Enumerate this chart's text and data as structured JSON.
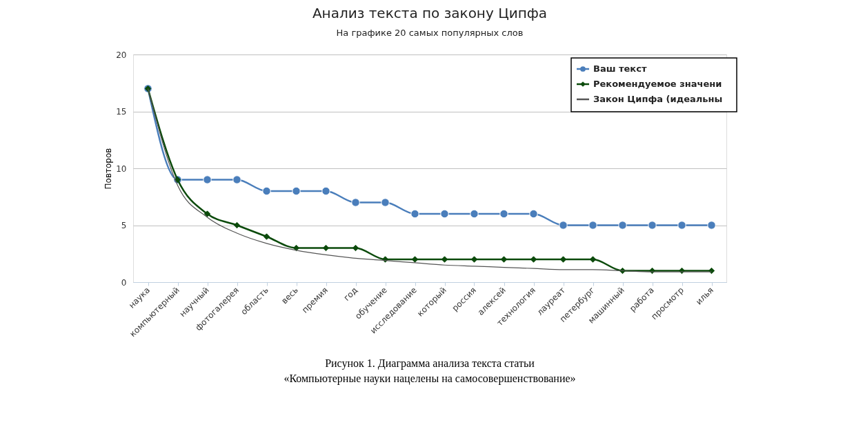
{
  "chart_data": {
    "type": "line",
    "title": "Анализ текста по закону Ципфа",
    "subtitle": "На графике 20 самых популярных слов",
    "ylabel": "Повторов",
    "categories": [
      "наука",
      "компьютерный",
      "научный",
      "фотогалерея",
      "область",
      "весь",
      "премия",
      "год",
      "обучение",
      "исследование",
      "который",
      "россия",
      "алексей",
      "технология",
      "лауреат",
      "петербург",
      "машинный",
      "работа",
      "просмотр",
      "илья"
    ],
    "series": [
      {
        "name": "Ваш текст",
        "color": "#4a7ebb",
        "marker": "circle",
        "values": [
          17,
          9,
          9,
          9,
          8,
          8,
          8,
          7,
          7,
          6,
          6,
          6,
          6,
          6,
          5,
          5,
          5,
          5,
          5,
          5
        ]
      },
      {
        "name": "Рекомендуемое значени",
        "color": "#0b4a0b",
        "marker": "diamond",
        "values": [
          17,
          9,
          6,
          5,
          4,
          3,
          3,
          3,
          2,
          2,
          2,
          2,
          2,
          2,
          2,
          2,
          1,
          1,
          1,
          1
        ]
      },
      {
        "name": "Закон Ципфа (идеальны",
        "color": "#555555",
        "marker": "none",
        "values": [
          17,
          8.5,
          5.7,
          4.3,
          3.4,
          2.8,
          2.4,
          2.1,
          1.9,
          1.7,
          1.5,
          1.4,
          1.3,
          1.2,
          1.1,
          1.1,
          1.0,
          0.9,
          0.9,
          0.9
        ]
      }
    ],
    "ylim": [
      0,
      20
    ],
    "yticks": [
      0,
      5,
      10,
      15,
      20
    ],
    "grid": "y",
    "legend": "top right",
    "annotations": [
      "Рисунок 1. Диаграмма анализа текста статьи",
      "«Компьютерные науки нацелены на самосовершенствование»"
    ]
  }
}
